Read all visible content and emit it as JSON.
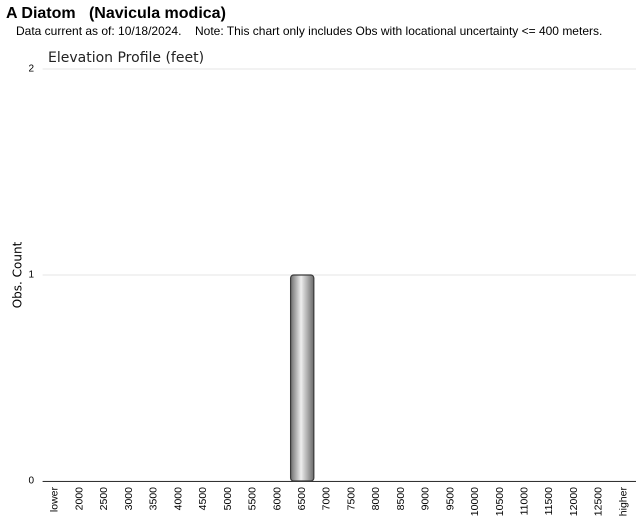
{
  "chart_data": {
    "type": "bar",
    "title": "A Diatom   (Navicula modica)",
    "subtitle": "Data current as of: 10/18/2024.",
    "note": "Note: This chart only includes Obs with locational uncertainty <= 400 meters.",
    "chart_title": "Elevation Profile (feet)",
    "y_label": "Obs. Count",
    "categories": [
      "lower",
      "2000",
      "2500",
      "3000",
      "3500",
      "4000",
      "4500",
      "5000",
      "5500",
      "6000",
      "6500",
      "7000",
      "7500",
      "8000",
      "8500",
      "9000",
      "9500",
      "10000",
      "10500",
      "11000",
      "11500",
      "12000",
      "12500",
      "higher"
    ],
    "values": [
      0,
      0,
      0,
      0,
      0,
      0,
      0,
      0,
      0,
      0,
      1,
      0,
      0,
      0,
      0,
      0,
      0,
      0,
      0,
      0,
      0,
      0,
      0,
      0
    ],
    "color": "#999999",
    "ylim": [
      0,
      2
    ],
    "yticks": [
      0,
      1,
      2
    ],
    "grid": true
  }
}
